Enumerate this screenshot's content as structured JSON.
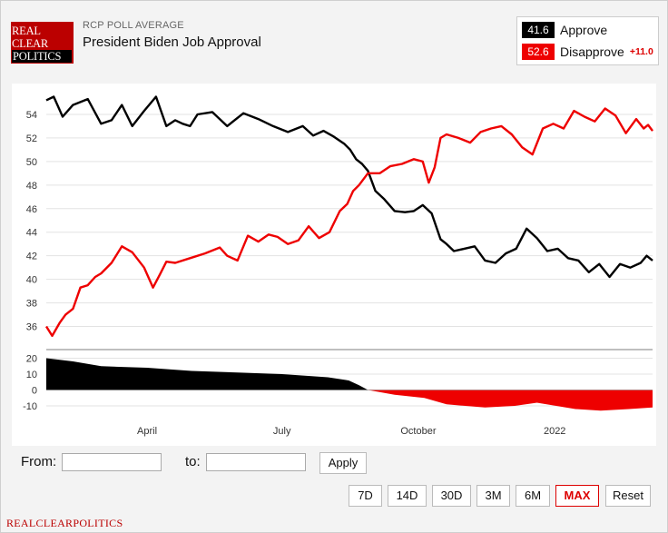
{
  "logo": {
    "line1": "REAL",
    "line2": "CLEAR",
    "line3": "POLITICS"
  },
  "header": {
    "kicker": "RCP POLL AVERAGE",
    "title": "President Biden Job Approval"
  },
  "legend": {
    "approve": {
      "value": "41.6",
      "label": "Approve",
      "color": "#000000"
    },
    "disapprove": {
      "value": "52.6",
      "label": "Disapprove",
      "spread": "+11.0",
      "color": "#ee0000"
    }
  },
  "controls": {
    "from_label": "From:",
    "to_label": "to:",
    "from_value": "",
    "to_value": "",
    "apply_label": "Apply",
    "ranges": [
      "7D",
      "14D",
      "30D",
      "3M",
      "6M",
      "MAX",
      "Reset"
    ],
    "active_range": "MAX"
  },
  "footer": {
    "brand": "REALCLEARPOLITICS"
  },
  "chart_data": [
    {
      "type": "line",
      "title": "",
      "xlabel": "",
      "ylabel": "",
      "ylim": [
        34.5,
        56
      ],
      "yticks": [
        36,
        38,
        40,
        42,
        44,
        46,
        48,
        50,
        52,
        54
      ],
      "x_tick_labels": [
        "April",
        "July",
        "October",
        "2022"
      ],
      "x_tick_dates": [
        "2021-04-01",
        "2021-07-01",
        "2021-10-01",
        "2022-01-01"
      ],
      "xlim": [
        "2021-01-23",
        "2022-03-08"
      ],
      "grid": true,
      "series": [
        {
          "name": "Approve",
          "color": "#000000",
          "x": [
            "2021-01-23",
            "2021-01-28",
            "2021-02-03",
            "2021-02-10",
            "2021-02-20",
            "2021-03-01",
            "2021-03-08",
            "2021-03-15",
            "2021-03-22",
            "2021-03-30",
            "2021-04-07",
            "2021-04-14",
            "2021-04-20",
            "2021-04-25",
            "2021-04-30",
            "2021-05-05",
            "2021-05-15",
            "2021-05-25",
            "2021-06-05",
            "2021-06-15",
            "2021-06-25",
            "2021-07-05",
            "2021-07-15",
            "2021-07-22",
            "2021-07-29",
            "2021-08-05",
            "2021-08-12",
            "2021-08-16",
            "2021-08-20",
            "2021-08-24",
            "2021-08-28",
            "2021-09-02",
            "2021-09-08",
            "2021-09-15",
            "2021-09-22",
            "2021-09-28",
            "2021-10-04",
            "2021-10-10",
            "2021-10-16",
            "2021-10-20",
            "2021-10-25",
            "2021-11-01",
            "2021-11-08",
            "2021-11-15",
            "2021-11-22",
            "2021-11-29",
            "2021-12-06",
            "2021-12-13",
            "2021-12-20",
            "2021-12-27",
            "2022-01-03",
            "2022-01-10",
            "2022-01-17",
            "2022-01-24",
            "2022-01-31",
            "2022-02-07",
            "2022-02-14",
            "2022-02-21",
            "2022-02-28",
            "2022-03-04",
            "2022-03-08"
          ],
          "values": [
            55.2,
            55.5,
            53.8,
            54.8,
            55.3,
            53.2,
            53.5,
            54.8,
            53.0,
            54.3,
            55.5,
            53.0,
            53.5,
            53.2,
            53.0,
            54.0,
            54.2,
            53.0,
            54.1,
            53.6,
            53.0,
            52.5,
            53.0,
            52.2,
            52.6,
            52.1,
            51.5,
            51.0,
            50.2,
            49.8,
            49.2,
            47.5,
            46.8,
            45.8,
            45.7,
            45.8,
            46.3,
            45.6,
            43.4,
            43.0,
            42.4,
            42.6,
            42.8,
            41.6,
            41.4,
            42.2,
            42.6,
            44.3,
            43.5,
            42.4,
            42.6,
            41.8,
            41.6,
            40.6,
            41.3,
            40.2,
            41.3,
            41.0,
            41.4,
            42.0,
            41.6
          ]
        },
        {
          "name": "Disapprove",
          "color": "#ee0000",
          "x": [
            "2021-01-23",
            "2021-01-27",
            "2021-02-01",
            "2021-02-05",
            "2021-02-10",
            "2021-02-15",
            "2021-02-20",
            "2021-02-25",
            "2021-03-01",
            "2021-03-08",
            "2021-03-15",
            "2021-03-22",
            "2021-03-30",
            "2021-04-05",
            "2021-04-10",
            "2021-04-14",
            "2021-04-20",
            "2021-04-30",
            "2021-05-10",
            "2021-05-20",
            "2021-05-25",
            "2021-06-01",
            "2021-06-08",
            "2021-06-15",
            "2021-06-22",
            "2021-06-28",
            "2021-07-05",
            "2021-07-12",
            "2021-07-19",
            "2021-07-26",
            "2021-08-02",
            "2021-08-09",
            "2021-08-14",
            "2021-08-18",
            "2021-08-22",
            "2021-08-28",
            "2021-09-05",
            "2021-09-12",
            "2021-09-20",
            "2021-09-28",
            "2021-10-04",
            "2021-10-08",
            "2021-10-12",
            "2021-10-16",
            "2021-10-20",
            "2021-10-28",
            "2021-11-05",
            "2021-11-12",
            "2021-11-19",
            "2021-11-26",
            "2021-12-03",
            "2021-12-10",
            "2021-12-17",
            "2021-12-24",
            "2021-12-31",
            "2022-01-07",
            "2022-01-14",
            "2022-01-21",
            "2022-01-28",
            "2022-02-04",
            "2022-02-11",
            "2022-02-18",
            "2022-02-25",
            "2022-03-02",
            "2022-03-05",
            "2022-03-08"
          ],
          "values": [
            36.0,
            35.2,
            36.3,
            37.0,
            37.5,
            39.3,
            39.5,
            40.2,
            40.5,
            41.4,
            42.8,
            42.3,
            41.0,
            39.3,
            40.5,
            41.5,
            41.4,
            41.8,
            42.2,
            42.7,
            42.0,
            41.6,
            43.7,
            43.2,
            43.8,
            43.6,
            43.0,
            43.3,
            44.5,
            43.5,
            44.0,
            45.8,
            46.4,
            47.5,
            48.0,
            49.0,
            49.0,
            49.6,
            49.8,
            50.2,
            50.0,
            48.2,
            49.5,
            52.0,
            52.3,
            52.0,
            51.6,
            52.5,
            52.8,
            53.0,
            52.3,
            51.2,
            50.6,
            52.8,
            53.2,
            52.8,
            54.3,
            53.8,
            53.4,
            54.5,
            53.9,
            52.4,
            53.6,
            52.8,
            53.1,
            52.6
          ]
        }
      ]
    },
    {
      "type": "area",
      "title": "",
      "xlabel": "",
      "ylabel": "",
      "ylim": [
        -14,
        22
      ],
      "yticks": [
        20,
        10,
        0,
        -10
      ],
      "xlim": [
        "2021-01-23",
        "2022-03-08"
      ],
      "grid": true,
      "series": [
        {
          "name": "",
          "color_positive": "#000000",
          "color_negative": "#ee0000",
          "x": [
            "2021-01-23",
            "2021-02-10",
            "2021-03-01",
            "2021-04-01",
            "2021-05-01",
            "2021-06-01",
            "2021-07-01",
            "2021-08-01",
            "2021-08-15",
            "2021-08-22",
            "2021-08-28",
            "2021-09-15",
            "2021-10-05",
            "2021-10-20",
            "2021-11-15",
            "2021-12-05",
            "2021-12-20",
            "2022-01-15",
            "2022-02-01",
            "2022-02-20",
            "2022-03-08"
          ],
          "values": [
            20,
            18,
            15,
            14,
            12,
            11,
            10,
            8,
            6,
            3,
            0,
            -3,
            -5,
            -9,
            -11,
            -10,
            -8,
            -12,
            -13,
            -12,
            -11
          ]
        }
      ]
    }
  ]
}
